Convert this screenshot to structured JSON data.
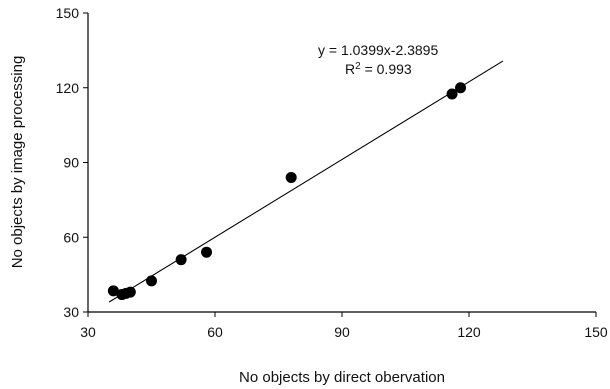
{
  "chart_data": {
    "type": "scatter",
    "title": "",
    "xlabel": "No objects by direct obervation",
    "ylabel": "No objects by image processing",
    "xlim": [
      30,
      150
    ],
    "ylim": [
      30,
      150
    ],
    "xticks": [
      30,
      60,
      90,
      120,
      150
    ],
    "yticks": [
      30,
      60,
      90,
      120,
      150
    ],
    "grid": false,
    "legend": "none",
    "colors": {
      "points": "#000000",
      "line": "#000000"
    },
    "points": [
      {
        "x": 36,
        "y": 38.5
      },
      {
        "x": 38,
        "y": 37
      },
      {
        "x": 39,
        "y": 37.5
      },
      {
        "x": 40,
        "y": 38
      },
      {
        "x": 45,
        "y": 42.5
      },
      {
        "x": 52,
        "y": 51
      },
      {
        "x": 58,
        "y": 54
      },
      {
        "x": 78,
        "y": 84
      },
      {
        "x": 116,
        "y": 117.5
      },
      {
        "x": 118,
        "y": 120
      }
    ],
    "trendline": {
      "slope": 1.0399,
      "intercept": -2.3895,
      "x_range": [
        35,
        128
      ]
    },
    "annotations": {
      "equation": "y = 1.0399x-2.3895",
      "r2_prefix": "R",
      "r2_exp": "2",
      "r2_suffix": " = 0.993"
    }
  }
}
